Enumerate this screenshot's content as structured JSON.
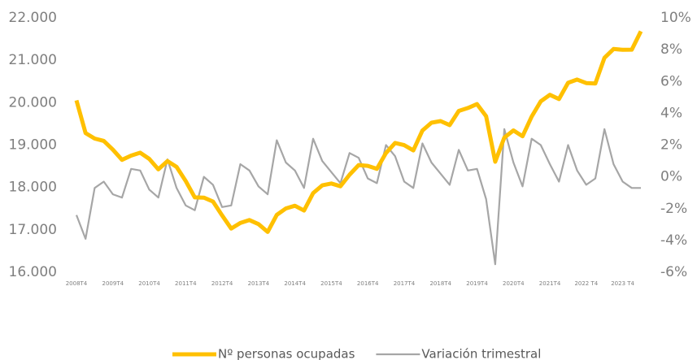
{
  "chart_data": {
    "type": "line",
    "categories": [
      "2008T4",
      null,
      null,
      null,
      "2009T4",
      null,
      null,
      null,
      "2010T4",
      null,
      null,
      null,
      "2011T4",
      null,
      null,
      null,
      "2012T4",
      null,
      null,
      null,
      "2013T4",
      null,
      null,
      null,
      "2014T4",
      null,
      null,
      null,
      "2015T4",
      null,
      null,
      null,
      "2016T4",
      null,
      null,
      null,
      "2017T4",
      null,
      null,
      null,
      "2018T4",
      null,
      null,
      null,
      "2019T4",
      null,
      null,
      null,
      "2020T4",
      null,
      null,
      null,
      "2021T4",
      null,
      null,
      null,
      "2022 T4",
      null,
      null,
      null,
      "2023 T4",
      null,
      null
    ],
    "series": [
      {
        "name": "Nº personas ocupadas",
        "color": "#ffc000",
        "values": [
          20055,
          19284,
          19154,
          19098,
          18890,
          18652,
          18751,
          18820,
          18674,
          18426,
          18622,
          18484,
          18153,
          17766,
          17759,
          17668,
          17339,
          17030,
          17161,
          17230,
          17135,
          16951,
          17353,
          17504,
          17569,
          17455,
          17867,
          18049,
          18094,
          18029,
          18301,
          18528,
          18509,
          18438,
          18813,
          19049,
          18998,
          18874,
          19344,
          19528,
          19565,
          19471,
          19805,
          19874,
          19967,
          19681,
          18607,
          19176,
          19345,
          19207,
          19671,
          20031,
          20185,
          20085,
          20468,
          20545,
          20463,
          20453,
          21056,
          21265,
          21246,
          21250,
          21684
        ]
      },
      {
        "name": "Variación trimestral",
        "color": "#a6a6a6",
        "axis": "y2",
        "values": [
          -2.4,
          -3.9,
          -0.7,
          -0.3,
          -1.1,
          -1.3,
          0.5,
          0.4,
          -0.8,
          -1.3,
          1.1,
          -0.7,
          -1.8,
          -2.1,
          0.0,
          -0.5,
          -1.9,
          -1.8,
          0.8,
          0.4,
          -0.6,
          -1.1,
          2.3,
          0.9,
          0.4,
          -0.7,
          2.4,
          1.0,
          0.3,
          -0.4,
          1.5,
          1.2,
          -0.1,
          -0.4,
          2.0,
          1.3,
          -0.3,
          -0.7,
          2.1,
          0.9,
          0.2,
          -0.5,
          1.7,
          0.4,
          0.5,
          -1.4,
          -5.5,
          3.0,
          0.9,
          -0.6,
          2.4,
          2.0,
          0.8,
          -0.3,
          2.0,
          0.4,
          -0.5,
          -0.1,
          3.0,
          0.8,
          -0.3,
          -0.7,
          -0.7
        ]
      }
    ],
    "ylim": [
      16000,
      22000
    ],
    "yticks": [
      {
        "value": 16000,
        "label": "16.000"
      },
      {
        "value": 17000,
        "label": "17.000"
      },
      {
        "value": 18000,
        "label": "18.000"
      },
      {
        "value": 19000,
        "label": "19.000"
      },
      {
        "value": 20000,
        "label": "20.000"
      },
      {
        "value": 21000,
        "label": "21.000"
      },
      {
        "value": 22000,
        "label": "22.000"
      }
    ],
    "y2lim": [
      -6,
      10
    ],
    "y2ticks": [
      {
        "value": -6,
        "label": "-6%"
      },
      {
        "value": -4,
        "label": "-4%"
      },
      {
        "value": -2,
        "label": "-2%"
      },
      {
        "value": 0,
        "label": "0%"
      },
      {
        "value": 2,
        "label": "2%"
      },
      {
        "value": 4,
        "label": "4%"
      },
      {
        "value": 6,
        "label": "6%"
      },
      {
        "value": 8,
        "label": "8%"
      },
      {
        "value": 10,
        "label": "10%"
      }
    ],
    "legend": "bottom"
  }
}
